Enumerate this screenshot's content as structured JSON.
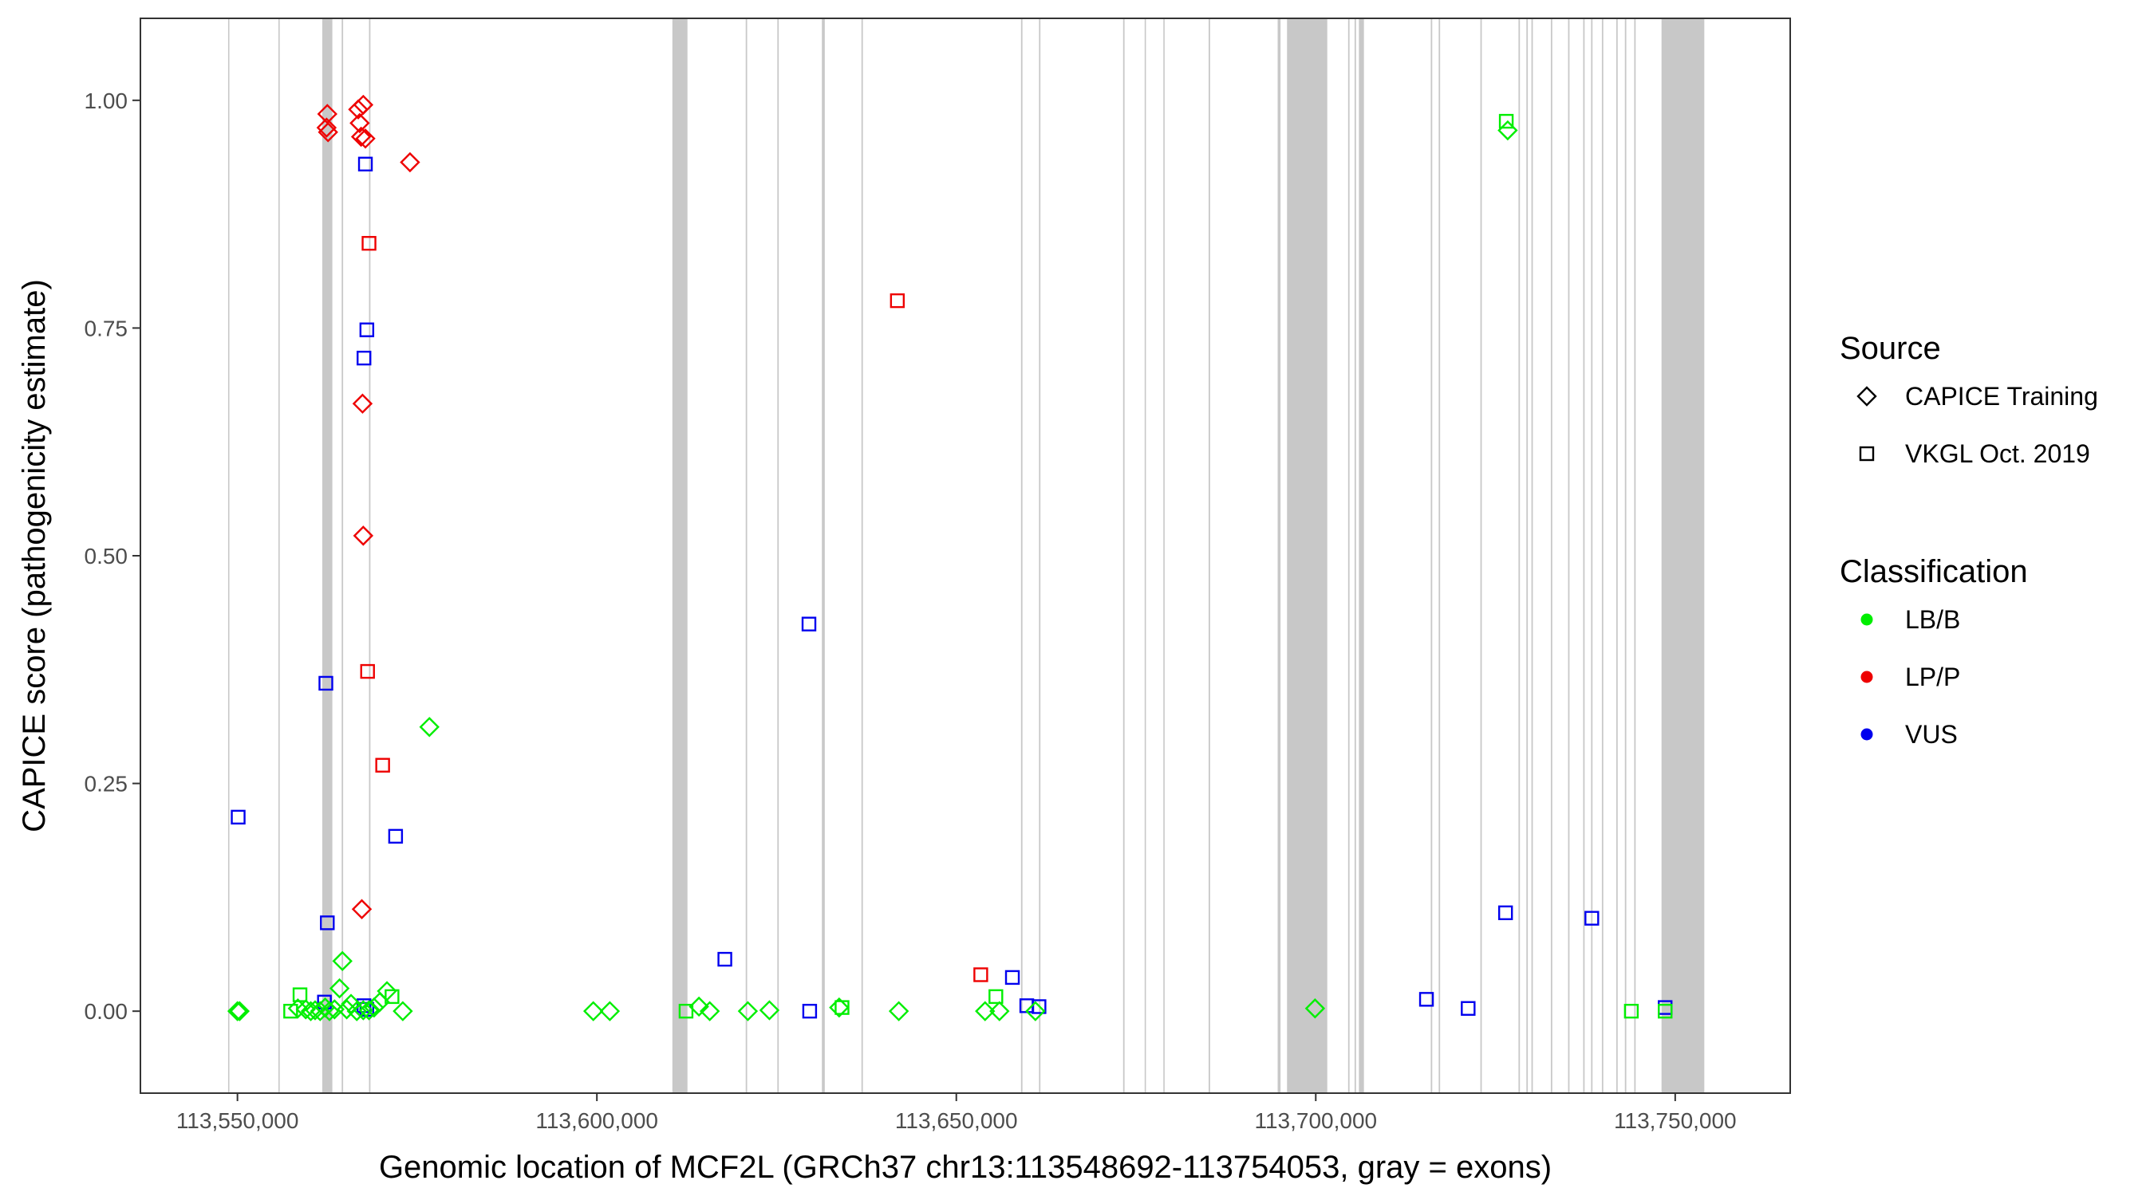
{
  "chart_data": {
    "type": "scatter",
    "xlabel": "Genomic location of MCF2L (GRCh37 chr13:113548692-113754053, gray = exons)",
    "ylabel": "CAPICE score (pathogenicity estimate)",
    "xlim": [
      113536500,
      113766000
    ],
    "ylim": [
      -0.09,
      1.09
    ],
    "x_ticks": [
      113550000,
      113600000,
      113650000,
      113700000,
      113750000
    ],
    "x_tick_labels": [
      "113,550,000",
      "113,600,000",
      "113,650,000",
      "113,700,000",
      "113,750,000"
    ],
    "y_ticks": [
      0,
      0.25,
      0.5,
      0.75,
      1
    ],
    "y_tick_labels": [
      "0.00",
      "0.25",
      "0.50",
      "0.75",
      "1.00"
    ],
    "grid": false,
    "legend_position": "right",
    "colors": {
      "LB/B": "#00ee00",
      "LP/P": "#ee0000",
      "VUS": "#0000ee",
      "exon": "#c8c8c8"
    },
    "exons": [
      [
        113548700,
        113548850
      ],
      [
        113555700,
        113555850
      ],
      [
        113561800,
        113563200
      ],
      [
        113564500,
        113564700
      ],
      [
        113568300,
        113568500
      ],
      [
        113610500,
        113612600
      ],
      [
        113620700,
        113620900
      ],
      [
        113625100,
        113625300
      ],
      [
        113631300,
        113631700
      ],
      [
        113636800,
        113637000
      ],
      [
        113659000,
        113659200
      ],
      [
        113661500,
        113661700
      ],
      [
        113673200,
        113673400
      ],
      [
        113676200,
        113676300
      ],
      [
        113678800,
        113678900
      ],
      [
        113685100,
        113685300
      ],
      [
        113694700,
        113695100
      ],
      [
        113696000,
        113701600
      ],
      [
        113704500,
        113704700
      ],
      [
        113705400,
        113705600
      ],
      [
        113706000,
        113706700
      ],
      [
        113716000,
        113716200
      ],
      [
        113717100,
        113717300
      ],
      [
        113722900,
        113723100
      ],
      [
        113728200,
        113728400
      ],
      [
        113729300,
        113729500
      ],
      [
        113730000,
        113730200
      ],
      [
        113732700,
        113732900
      ],
      [
        113735100,
        113735300
      ],
      [
        113737200,
        113737400
      ],
      [
        113738300,
        113738500
      ],
      [
        113739800,
        113740000
      ],
      [
        113741800,
        113742000
      ],
      [
        113743000,
        113743200
      ],
      [
        113744300,
        113744500
      ],
      [
        113748100,
        113754050
      ]
    ],
    "legends": [
      {
        "title": "Source",
        "entries": [
          {
            "label": "CAPICE Training",
            "shape": "diamond"
          },
          {
            "label": "VKGL Oct. 2019",
            "shape": "square"
          }
        ]
      },
      {
        "title": "Classification",
        "entries": [
          {
            "label": "LB/B",
            "color": "#00ee00"
          },
          {
            "label": "LP/P",
            "color": "#ee0000"
          },
          {
            "label": "VUS",
            "color": "#0000ee"
          }
        ]
      }
    ],
    "series": [
      {
        "name": "CAPICE Training",
        "class": "LP/P",
        "shape": "diamond",
        "points": [
          [
            113562500,
            0.985
          ],
          [
            113562400,
            0.97
          ],
          [
            113562600,
            0.965
          ],
          [
            113567500,
            0.995
          ],
          [
            113566800,
            0.99
          ],
          [
            113567000,
            0.975
          ],
          [
            113567200,
            0.96
          ],
          [
            113567800,
            0.958
          ],
          [
            113574000,
            0.932
          ],
          [
            113567400,
            0.667
          ],
          [
            113567500,
            0.522
          ],
          [
            113567300,
            0.112
          ]
        ]
      },
      {
        "name": "VKGL Oct. 2019",
        "class": "LP/P",
        "shape": "square",
        "points": [
          [
            113568300,
            0.843
          ],
          [
            113568100,
            0.373
          ],
          [
            113570200,
            0.27
          ],
          [
            113641800,
            0.78
          ],
          [
            113653400,
            0.04
          ]
        ]
      },
      {
        "name": "VKGL Oct. 2019",
        "class": "VUS",
        "shape": "square",
        "points": [
          [
            113567800,
            0.93
          ],
          [
            113568000,
            0.748
          ],
          [
            113567600,
            0.717
          ],
          [
            113562300,
            0.36
          ],
          [
            113562500,
            0.097
          ],
          [
            113572000,
            0.192
          ],
          [
            113550100,
            0.213
          ],
          [
            113562100,
            0.01
          ],
          [
            113567600,
            0.006
          ],
          [
            113568000,
            0.002
          ],
          [
            113629500,
            0.425
          ],
          [
            113617800,
            0.057
          ],
          [
            113629600,
            0.0
          ],
          [
            113657800,
            0.037
          ],
          [
            113659800,
            0.006
          ],
          [
            113661500,
            0.005
          ],
          [
            113715400,
            0.013
          ],
          [
            113721200,
            0.003
          ],
          [
            113726400,
            0.108
          ],
          [
            113738400,
            0.102
          ],
          [
            113748600,
            0.004
          ]
        ]
      },
      {
        "name": "CAPICE Training",
        "class": "LB/B",
        "shape": "diamond",
        "points": [
          [
            113726700,
            0.967
          ],
          [
            113550000,
            0.0
          ],
          [
            113550300,
            0.0
          ],
          [
            113558400,
            0.003
          ],
          [
            113559500,
            0.002
          ],
          [
            113560200,
            0.0
          ],
          [
            113560800,
            0.001
          ],
          [
            113561500,
            0.0
          ],
          [
            113562200,
            0.004
          ],
          [
            113562800,
            0.0
          ],
          [
            113563500,
            0.002
          ],
          [
            113564200,
            0.025
          ],
          [
            113564600,
            0.055
          ],
          [
            113565200,
            0.002
          ],
          [
            113565800,
            0.008
          ],
          [
            113566600,
            0.0
          ],
          [
            113567500,
            0.001
          ],
          [
            113568300,
            0.001
          ],
          [
            113569000,
            0.004
          ],
          [
            113569800,
            0.01
          ],
          [
            113570800,
            0.022
          ],
          [
            113573000,
            0.0
          ],
          [
            113576700,
            0.312
          ],
          [
            113599500,
            0.0
          ],
          [
            113601800,
            0.0
          ],
          [
            113614200,
            0.005
          ],
          [
            113615700,
            0.0
          ],
          [
            113621000,
            0.0
          ],
          [
            113624000,
            0.001
          ],
          [
            113633700,
            0.004
          ],
          [
            113642000,
            0.0
          ],
          [
            113654000,
            0.0
          ],
          [
            113656000,
            0.0
          ],
          [
            113661000,
            0.0
          ],
          [
            113699900,
            0.003
          ]
        ]
      },
      {
        "name": "VKGL Oct. 2019",
        "class": "LB/B",
        "shape": "square",
        "points": [
          [
            113726500,
            0.977
          ],
          [
            113557400,
            0.0
          ],
          [
            113558700,
            0.018
          ],
          [
            113571500,
            0.016
          ],
          [
            113612400,
            0.0
          ],
          [
            113634100,
            0.004
          ],
          [
            113655500,
            0.016
          ],
          [
            113743900,
            0.0
          ],
          [
            113748600,
            0.0
          ]
        ]
      }
    ]
  }
}
